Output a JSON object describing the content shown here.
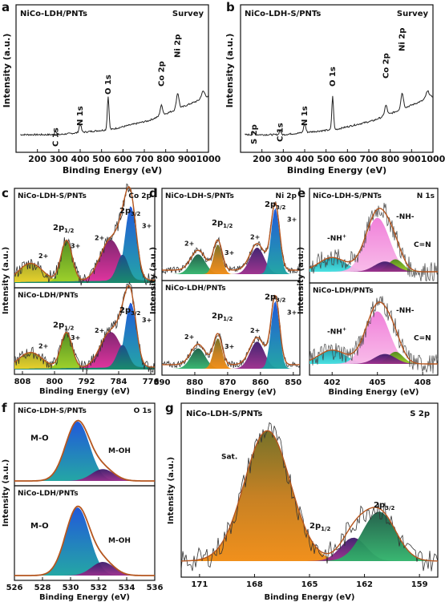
{
  "palette": {
    "frame": "#111111",
    "spectrum": "#222222",
    "fit": "#b5561f"
  },
  "chart_data": [
    {
      "id": "a",
      "type": "line",
      "panel_letter": "a",
      "label_left": "NiCo-LDH/PNTs",
      "label_right": "Survey",
      "xlabel": "Binding Energy (eV)",
      "ylabel": "Intensity (a.u.)",
      "xlim": [
        100,
        1000
      ],
      "xticks": [
        200,
        300,
        400,
        500,
        600,
        700,
        800,
        900,
        1000
      ],
      "peaks": [
        {
          "label": "C 1s",
          "x": 285
        },
        {
          "label": "N 1s",
          "x": 400
        },
        {
          "label": "O 1s",
          "x": 531
        },
        {
          "label": "Co 2p",
          "x": 780
        },
        {
          "label": "Ni 2p",
          "x": 856
        }
      ]
    },
    {
      "id": "b",
      "type": "line",
      "panel_letter": "b",
      "label_left": "NiCo-LDH-S/PNTs",
      "label_right": "Survey",
      "xlabel": "Binding Energy (eV)",
      "ylabel": "Intensity (a.u.)",
      "xlim": [
        100,
        1000
      ],
      "xticks": [
        200,
        300,
        400,
        500,
        600,
        700,
        800,
        900,
        1000
      ],
      "peaks": [
        {
          "label": "S 2p",
          "x": 163
        },
        {
          "label": "C 1s",
          "x": 285
        },
        {
          "label": "N 1s",
          "x": 400
        },
        {
          "label": "O 1s",
          "x": 531
        },
        {
          "label": "Co 2p",
          "x": 780
        },
        {
          "label": "Ni 2p",
          "x": 856
        }
      ]
    },
    {
      "id": "c",
      "type": "area",
      "panel_letter": "c",
      "label_right": "Co 2p",
      "xlabel": "Binding Energy (eV)",
      "ylabel": "Intensity (a.u.)",
      "xlim": [
        810,
        775
      ],
      "xticks": [
        808,
        800,
        792,
        784,
        776
      ],
      "subpanels": [
        {
          "sample": "NiCo-LDH-S/PNTs",
          "labels": [
            "2p1/2",
            "2p3/2",
            "2+",
            "3+",
            "2+",
            "3+"
          ]
        },
        {
          "sample": "NiCo-LDH/PNTs",
          "labels": [
            "2p1/2",
            "2p3/2",
            "2+",
            "3+",
            "2+",
            "3+"
          ]
        }
      ]
    },
    {
      "id": "d",
      "type": "area",
      "panel_letter": "d",
      "label_right": "Ni 2p",
      "xlabel": "Binding Energy (eV)",
      "ylabel": "Intensity (a.u.)",
      "xlim": [
        890,
        848
      ],
      "xticks": [
        890,
        880,
        870,
        860,
        850
      ],
      "subpanels": [
        {
          "sample": "NiCo-LDH-S/PNTs",
          "labels": [
            "2p1/2",
            "2p3/2",
            "2+",
            "3+",
            "2+",
            "3+"
          ]
        },
        {
          "sample": "NiCo-LDH/PNTs",
          "labels": [
            "2p1/2",
            "2p3/2",
            "2+",
            "3+",
            "2+",
            "3+"
          ]
        }
      ]
    },
    {
      "id": "e",
      "type": "area",
      "panel_letter": "e",
      "label_right": "N 1s",
      "xlabel": "Binding Energy (eV)",
      "ylabel": "Intensity (a.u.)",
      "xlim": [
        400.5,
        409
      ],
      "xticks": [
        402,
        405,
        408
      ],
      "subpanels": [
        {
          "sample": "NiCo-LDH-S/PNTs",
          "labels": [
            "-NH+",
            "-NH-",
            "C=N"
          ]
        },
        {
          "sample": "NiCo-LDH/PNTs",
          "labels": [
            "-NH+",
            "-NH-",
            "C=N"
          ]
        }
      ]
    },
    {
      "id": "f",
      "type": "area",
      "panel_letter": "f",
      "label_right": "O 1s",
      "xlabel": "Binding Energy (eV)",
      "ylabel": "Intensity (a.u.)",
      "xlim": [
        526,
        536
      ],
      "xticks": [
        526,
        528,
        530,
        532,
        534,
        536
      ],
      "subpanels": [
        {
          "sample": "NiCo-LDH-S/PNTs",
          "labels": [
            "M-O",
            "M-OH"
          ]
        },
        {
          "sample": "NiCo-LDH/PNTs",
          "labels": [
            "M-O",
            "M-OH"
          ]
        }
      ]
    },
    {
      "id": "g",
      "type": "area",
      "panel_letter": "g",
      "label_left": "NiCo-LDH-S/PNTs",
      "label_right": "S 2p",
      "xlabel": "Binding Energy (eV)",
      "ylabel": "Intensity (a.u.)",
      "xlim": [
        172,
        158
      ],
      "xticks": [
        171,
        168,
        165,
        162,
        159
      ],
      "labels": [
        "Sat.",
        "2p1/2",
        "2p3/2"
      ]
    }
  ]
}
